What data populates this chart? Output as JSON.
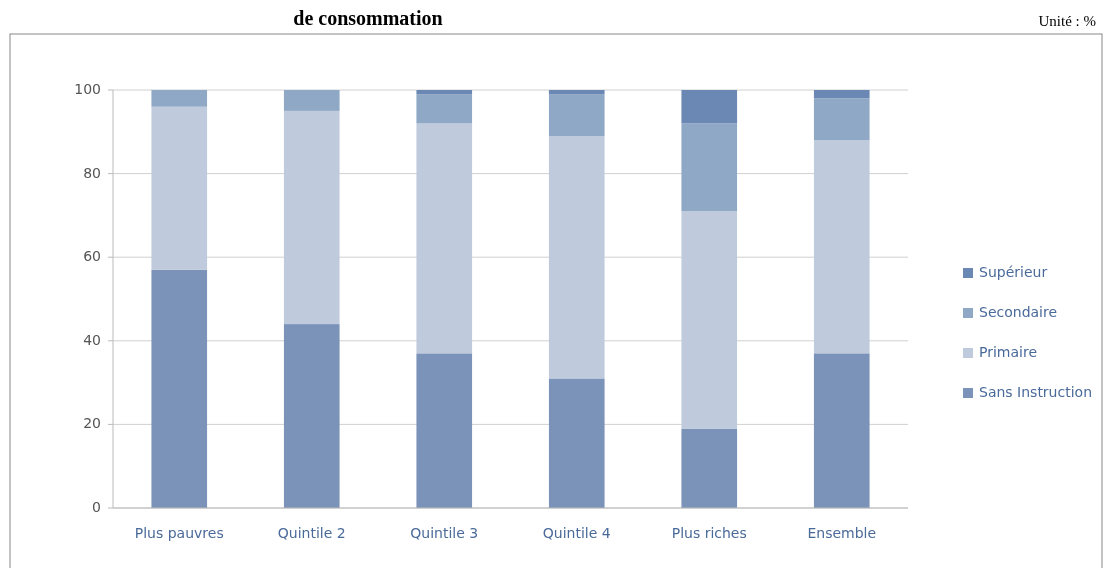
{
  "chart_data": {
    "type": "bar",
    "title": "de consommation",
    "annotations": [
      "Unité : %"
    ],
    "categories": [
      "Plus pauvres",
      "Quintile 2",
      "Quintile 3",
      "Quintile 4",
      "Plus riches",
      "Ensemble"
    ],
    "stacked": true,
    "ylim": [
      0,
      100
    ],
    "yticks": [
      0,
      20,
      40,
      60,
      80,
      100
    ],
    "grid": "y",
    "legend": "right",
    "series": [
      {
        "name": "Sans Instruction",
        "color": "#7b93b8",
        "values": [
          57,
          44,
          37,
          31,
          19,
          37
        ]
      },
      {
        "name": "Primaire",
        "color": "#bfcbdc",
        "values": [
          39,
          51,
          55,
          58,
          52,
          51
        ]
      },
      {
        "name": "Secondaire",
        "color": "#8fa8c6",
        "values": [
          4,
          5,
          7,
          10,
          21,
          10
        ]
      },
      {
        "name": "Supérieur",
        "color": "#6a88b3",
        "values": [
          0,
          0,
          1,
          1,
          8,
          2
        ]
      }
    ]
  }
}
